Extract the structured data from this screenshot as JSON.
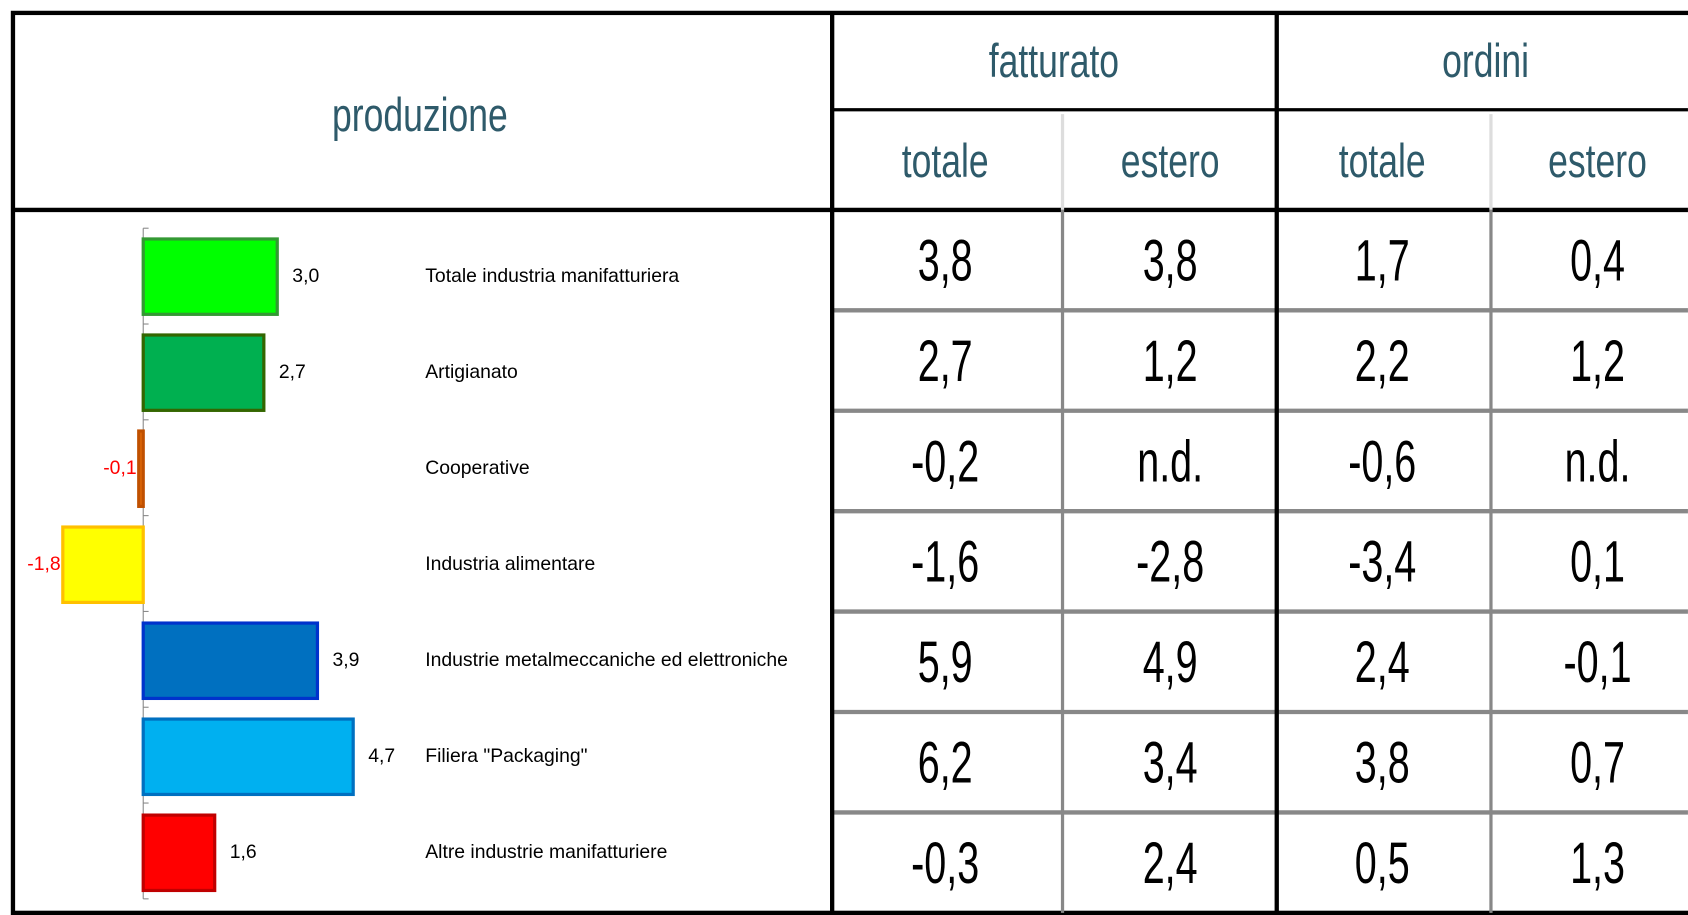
{
  "chart_data": {
    "type": "bar",
    "title": "produzione",
    "categories": [
      "Totale industria manifatturiera",
      "Artigianato",
      "Cooperative",
      "Industria alimentare",
      "Industrie metalmeccaniche ed elettroniche",
      "Filiera \"Packaging\"",
      "Altre industrie manifatturiere"
    ],
    "values": [
      3.0,
      2.7,
      -0.1,
      -1.8,
      3.9,
      4.7,
      1.6
    ],
    "value_labels": [
      "3,0",
      "2,7",
      "-0,1",
      "-1,8",
      "3,9",
      "4,7",
      "1,6"
    ],
    "colors": [
      "#00ff00",
      "#00b050",
      "#e36c09",
      "#ffff00",
      "#0070c0",
      "#00b0f0",
      "#ff0000"
    ],
    "edge_colors": [
      "#339933",
      "#336600",
      "#c05000",
      "#ffc000",
      "#0033cc",
      "#0070c0",
      "#c00000"
    ]
  },
  "table": {
    "groups": [
      "fatturato",
      "ordini"
    ],
    "columns": [
      "totale",
      "estero",
      "totale",
      "estero"
    ],
    "rows": [
      [
        "3,8",
        "3,8",
        "1,7",
        "0,4"
      ],
      [
        "2,7",
        "1,2",
        "2,2",
        "1,2"
      ],
      [
        "-0,2",
        "n.d.",
        "-0,6",
        "n.d."
      ],
      [
        "-1,6",
        "-2,8",
        "-3,4",
        "0,1"
      ],
      [
        "5,9",
        "4,9",
        "2,4",
        "-0,1"
      ],
      [
        "6,2",
        "3,4",
        "3,8",
        "0,7"
      ],
      [
        "-0,3",
        "2,4",
        "0,5",
        "1,3"
      ]
    ]
  }
}
